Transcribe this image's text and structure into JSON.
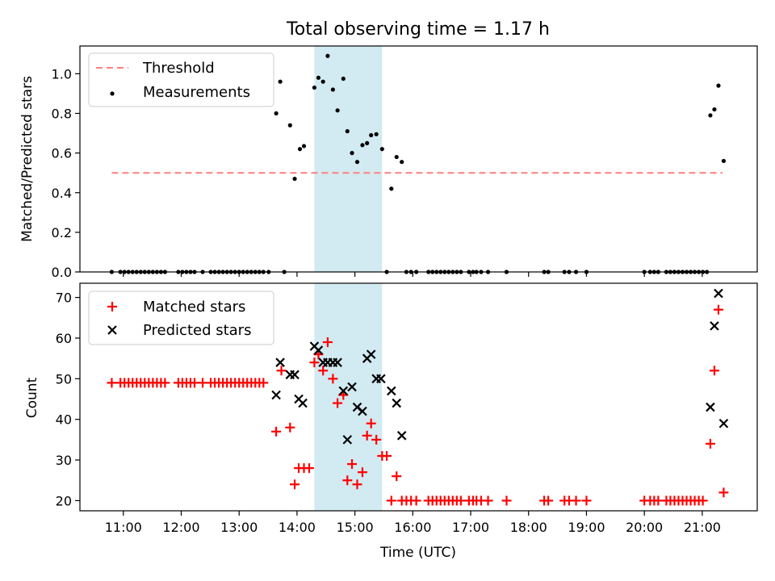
{
  "title": "Total observing time = 1.17 h",
  "xlabel": "Time (UTC)",
  "colors": {
    "threshold": "#ff7f7f",
    "measure": "#000000",
    "matched": "#ff0000",
    "predicted": "#000000",
    "shade": "#add8e6"
  },
  "chart_data": [
    {
      "type": "scatter",
      "name": "ratio-panel",
      "ylabel": "Matched/Predicted stars",
      "ylim": [
        0,
        1.14
      ],
      "xlim": [
        10.25,
        21.95
      ],
      "yticks": [
        0.0,
        0.2,
        0.4,
        0.6,
        0.8,
        1.0
      ],
      "ytick_labels": [
        "0.0",
        "0.2",
        "0.4",
        "0.6",
        "0.8",
        "1.0"
      ],
      "legend": {
        "placement": "top-left",
        "threshold_label": "Threshold",
        "measure_label": "Measurements"
      },
      "shaded_region": [
        14.3,
        15.47
      ],
      "threshold": {
        "value": 0.5,
        "x": [
          10.8,
          21.35
        ]
      },
      "series": [
        {
          "label": "Measurements",
          "x": [
            10.8,
            10.95,
            11.02,
            11.09,
            11.16,
            11.23,
            11.3,
            11.37,
            11.44,
            11.51,
            11.58,
            11.65,
            11.72,
            11.95,
            12.02,
            12.09,
            12.16,
            12.23,
            12.37,
            12.51,
            12.58,
            12.65,
            12.72,
            12.79,
            12.86,
            12.93,
            13.0,
            13.07,
            13.14,
            13.21,
            13.28,
            13.35,
            13.42,
            13.51,
            13.64,
            13.71,
            13.78,
            13.88,
            13.96,
            14.05,
            14.12,
            14.3,
            14.37,
            14.45,
            14.53,
            14.62,
            14.7,
            14.8,
            14.87,
            14.95,
            15.04,
            15.13,
            15.21,
            15.28,
            15.37,
            15.47,
            15.55,
            15.63,
            15.72,
            15.81,
            15.89,
            15.97,
            16.06,
            16.27,
            16.34,
            16.41,
            16.48,
            16.55,
            16.62,
            16.69,
            16.76,
            16.83,
            16.97,
            17.04,
            17.1,
            17.18,
            17.3,
            17.62,
            18.27,
            18.34,
            18.62,
            18.7,
            18.82,
            19.0,
            20.0,
            20.1,
            20.17,
            20.24,
            20.38,
            20.45,
            20.52,
            20.59,
            20.66,
            20.73,
            20.8,
            20.87,
            20.94,
            21.01,
            21.08,
            21.14,
            21.21,
            21.28,
            21.37
          ],
          "y": [
            0,
            0,
            0,
            0,
            0,
            0,
            0,
            0,
            0,
            0,
            0,
            0,
            0,
            0,
            0,
            0,
            0,
            0,
            0,
            0,
            0,
            0,
            0,
            0,
            0,
            0,
            0,
            0,
            0,
            0,
            0,
            0,
            0,
            0,
            0.8,
            0.96,
            0,
            0.74,
            0.47,
            0.62,
            0.635,
            0.93,
            0.98,
            0.96,
            1.09,
            0.92,
            0.815,
            0.975,
            0.71,
            0.6,
            0.555,
            0.64,
            0.65,
            0.69,
            0.695,
            0.62,
            0,
            0.42,
            0.58,
            0.555,
            0,
            0,
            0,
            0,
            0,
            0,
            0,
            0,
            0,
            0,
            0,
            0,
            0,
            0,
            0,
            0,
            0,
            0,
            0,
            0,
            0,
            0,
            0,
            0,
            0,
            0,
            0,
            0,
            0,
            0,
            0,
            0,
            0,
            0,
            0,
            0,
            0,
            0,
            0,
            0.79,
            0.82,
            0.94,
            0.56
          ]
        }
      ]
    },
    {
      "type": "scatter",
      "name": "count-panel",
      "ylabel": "Count",
      "ylim": [
        17.5,
        73.5
      ],
      "xlim": [
        10.25,
        21.95
      ],
      "yticks": [
        20,
        30,
        40,
        50,
        60,
        70
      ],
      "ytick_labels": [
        "20",
        "30",
        "40",
        "50",
        "60",
        "70"
      ],
      "xticks": [
        11,
        12,
        13,
        14,
        15,
        16,
        17,
        18,
        19,
        20,
        21
      ],
      "xtick_labels": [
        "11:00",
        "12:00",
        "13:00",
        "14:00",
        "15:00",
        "16:00",
        "17:00",
        "18:00",
        "19:00",
        "20:00",
        "21:00"
      ],
      "legend": {
        "placement": "top-left",
        "matched_label": "Matched stars",
        "predicted_label": "Predicted stars"
      },
      "shaded_region": [
        14.3,
        15.47
      ],
      "series": [
        {
          "label": "Matched stars",
          "x": [
            10.8,
            10.95,
            11.02,
            11.09,
            11.16,
            11.23,
            11.3,
            11.37,
            11.44,
            11.51,
            11.58,
            11.65,
            11.72,
            11.95,
            12.02,
            12.09,
            12.16,
            12.23,
            12.37,
            12.51,
            12.58,
            12.65,
            12.72,
            12.79,
            12.86,
            12.93,
            13.0,
            13.07,
            13.14,
            13.21,
            13.28,
            13.35,
            13.42,
            13.64,
            13.73,
            13.88,
            13.96,
            14.03,
            14.12,
            14.21,
            14.3,
            14.37,
            14.45,
            14.53,
            14.62,
            14.7,
            14.8,
            14.87,
            14.95,
            15.04,
            15.13,
            15.21,
            15.28,
            15.37,
            15.47,
            15.55,
            15.63,
            15.72,
            15.81,
            15.89,
            15.97,
            16.06,
            16.27,
            16.34,
            16.41,
            16.48,
            16.55,
            16.62,
            16.69,
            16.76,
            16.83,
            16.97,
            17.04,
            17.1,
            17.18,
            17.3,
            17.62,
            18.27,
            18.34,
            18.62,
            18.7,
            18.82,
            19.0,
            20.0,
            20.1,
            20.17,
            20.24,
            20.38,
            20.45,
            20.52,
            20.59,
            20.66,
            20.73,
            20.8,
            20.87,
            20.94,
            21.01,
            21.14,
            21.21,
            21.28,
            21.37
          ],
          "y": [
            49,
            49,
            49,
            49,
            49,
            49,
            49,
            49,
            49,
            49,
            49,
            49,
            49,
            49,
            49,
            49,
            49,
            49,
            49,
            49,
            49,
            49,
            49,
            49,
            49,
            49,
            49,
            49,
            49,
            49,
            49,
            49,
            49,
            37,
            52,
            38,
            24,
            28,
            28,
            28,
            54,
            56,
            52,
            59,
            50,
            44,
            46,
            25,
            29,
            24,
            27,
            36,
            39,
            35,
            31,
            31,
            20,
            26,
            20,
            20,
            20,
            20,
            20,
            20,
            20,
            20,
            20,
            20,
            20,
            20,
            20,
            20,
            20,
            20,
            20,
            20,
            20,
            20,
            20,
            20,
            20,
            20,
            20,
            20,
            20,
            20,
            20,
            20,
            20,
            20,
            20,
            20,
            20,
            20,
            20,
            20,
            20,
            34,
            52,
            67,
            22
          ]
        },
        {
          "label": "Predicted stars",
          "x": [
            13.64,
            13.71,
            13.88,
            13.96,
            14.03,
            14.1,
            14.3,
            14.37,
            14.45,
            14.53,
            14.62,
            14.7,
            14.8,
            14.87,
            14.95,
            15.04,
            15.13,
            15.21,
            15.28,
            15.37,
            15.45,
            15.63,
            15.72,
            15.81,
            21.14,
            21.21,
            21.28,
            21.37
          ],
          "y": [
            46,
            54,
            51,
            51,
            45,
            44,
            58,
            57,
            54,
            54,
            54,
            54,
            47,
            35,
            48,
            43,
            42,
            55,
            56,
            50,
            50,
            47,
            44,
            36,
            43,
            63,
            71,
            39
          ]
        }
      ]
    }
  ]
}
